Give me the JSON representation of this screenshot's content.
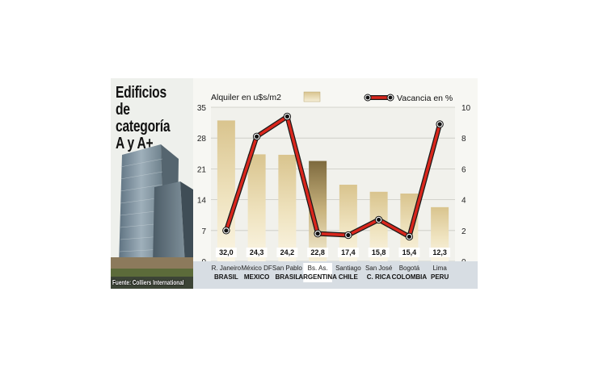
{
  "title": "Edificios de\ncategoría\nA y A+",
  "source": "Fuente: Colliers International",
  "chart_data": {
    "type": "bar+line",
    "categories": [
      {
        "city": "R. Janeiro",
        "country": "BRASIL"
      },
      {
        "city": "México DF",
        "country": "MEXICO"
      },
      {
        "city": "San Pablo",
        "country": "BRASIL"
      },
      {
        "city": "Bs. As.",
        "country": "ARGENTINA"
      },
      {
        "city": "Santiago",
        "country": "CHILE"
      },
      {
        "city": "San José",
        "country": "C. RICA"
      },
      {
        "city": "Bogotá",
        "country": "COLOMBIA"
      },
      {
        "city": "Lima",
        "country": "PERU"
      }
    ],
    "highlight_index": 3,
    "series": [
      {
        "name": "Alquiler en u$s/m2",
        "type": "bar",
        "axis": "left",
        "values": [
          32.0,
          24.3,
          24.2,
          22.8,
          17.4,
          15.8,
          15.4,
          12.3
        ],
        "value_labels": [
          "32,0",
          "24,3",
          "24,2",
          "22,8",
          "17,4",
          "15,8",
          "15,4",
          "12,3"
        ],
        "color": "#e8d8a8"
      },
      {
        "name": "Vacancia en %",
        "type": "line",
        "axis": "right",
        "values": [
          2.0,
          8.1,
          9.4,
          1.8,
          1.7,
          2.7,
          1.6,
          8.9
        ],
        "color": "#d9261c"
      }
    ],
    "left_axis": {
      "min": 0,
      "max": 35,
      "ticks": [
        0,
        7,
        14,
        21,
        28,
        35
      ]
    },
    "right_axis": {
      "min": 0,
      "max": 10,
      "ticks": [
        0,
        2,
        4,
        6,
        8,
        10
      ]
    },
    "grid": true,
    "legend_position": "top"
  }
}
